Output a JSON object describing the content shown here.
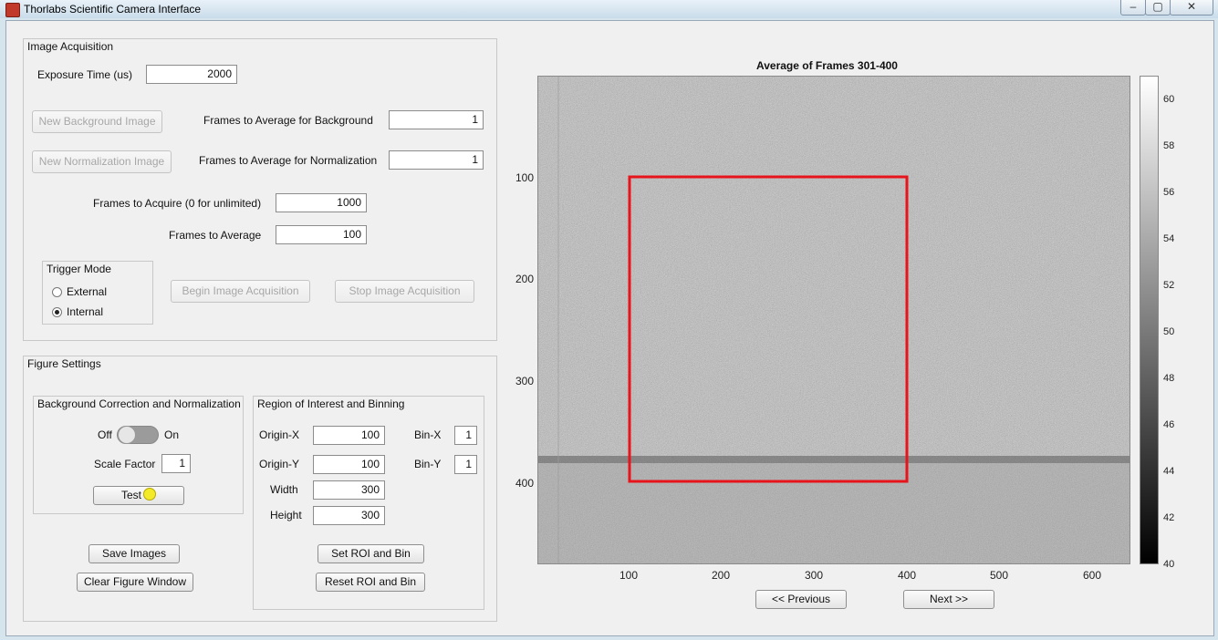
{
  "window": {
    "title": "Thorlabs Scientific Camera Interface",
    "minimize": "–",
    "maximize": "▢",
    "close": "✕"
  },
  "acquisition": {
    "panel_title": "Image Acquisition",
    "exposure_label": "Exposure Time (us)",
    "exposure_value": "2000",
    "new_background_label": "New Background Image",
    "frames_bg_label": "Frames to Average for Background",
    "frames_bg_value": "1",
    "new_normalization_label": "New Normalization Image",
    "frames_norm_label": "Frames to Average for Normalization",
    "frames_norm_value": "1",
    "frames_acquire_label": "Frames to Acquire (0 for unlimited)",
    "frames_acquire_value": "1000",
    "frames_average_label": "Frames to Average",
    "frames_average_value": "100",
    "trigger_title": "Trigger Mode",
    "trigger_options": [
      "External",
      "Internal"
    ],
    "trigger_selected": "Internal",
    "begin_label": "Begin Image Acquisition",
    "stop_label": "Stop Image Acquisition"
  },
  "figure_settings": {
    "panel_title": "Figure Settings",
    "bgcorr_title": "Background Correction and Normalization",
    "toggle_off": "Off",
    "toggle_on": "On",
    "toggle_state": "Off",
    "scale_label": "Scale Factor",
    "scale_value": "1",
    "test_label": "Test",
    "lamp_color": "#f3ea2a",
    "roi_title": "Region of Interest and Binning",
    "origin_x_label": "Origin-X",
    "origin_x_value": "100",
    "bin_x_label": "Bin-X",
    "bin_x_value": "1",
    "origin_y_label": "Origin-Y",
    "origin_y_value": "100",
    "bin_y_label": "Bin-Y",
    "bin_y_value": "1",
    "width_label": "Width",
    "width_value": "300",
    "height_label": "Height",
    "height_value": "300",
    "set_roi_label": "Set ROI and Bin",
    "reset_roi_label": "Reset ROI and Bin",
    "save_images_label": "Save Images",
    "clear_figure_label": "Clear Figure Window"
  },
  "plot": {
    "title": "Average of Frames 301-400",
    "x_ticks": [
      "100",
      "200",
      "300",
      "400",
      "500",
      "600"
    ],
    "y_ticks": [
      "100",
      "200",
      "300",
      "400"
    ],
    "colorbar_ticks": [
      "60",
      "58",
      "56",
      "54",
      "52",
      "50",
      "48",
      "46",
      "44",
      "42",
      "40"
    ],
    "roi_color": "#e8141b",
    "prev_label": "<< Previous",
    "next_label": "Next >>"
  }
}
